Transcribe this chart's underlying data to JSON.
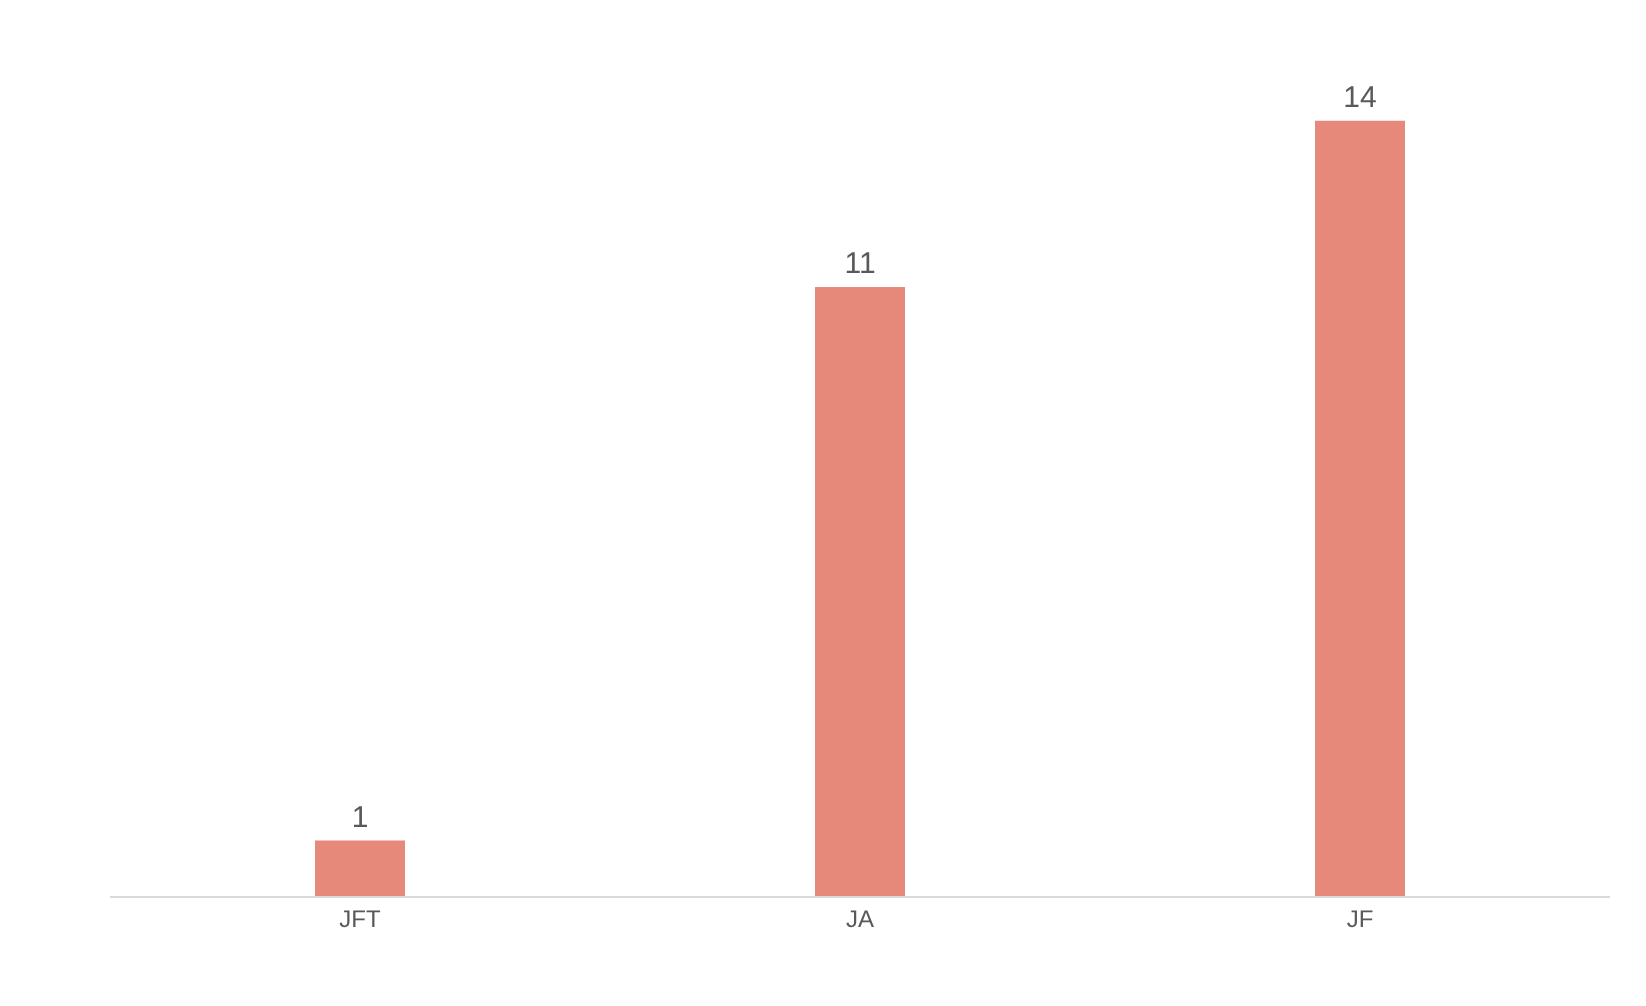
{
  "chart_data": {
    "type": "bar",
    "categories": [
      "JFT",
      "JA",
      "JF"
    ],
    "values": [
      1,
      11,
      14
    ],
    "color": "#e6887a",
    "data_labels": true,
    "tick_labels": "x"
  }
}
